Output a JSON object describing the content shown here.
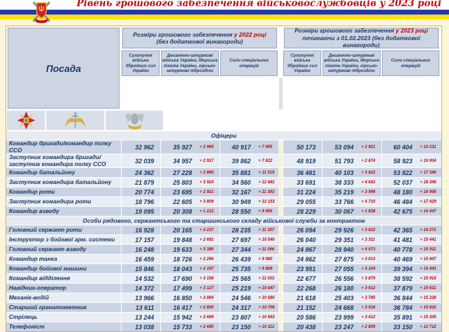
{
  "title": "Рівень грошового забезпечення військовослужбовців у 2023 році",
  "header_emblem": "ministry-of-defense-ukraine-emblem",
  "flag_stripes": {
    "blue": "#2038b0",
    "yellow": "#ffe10a"
  },
  "colors": {
    "title_red": "#bf0f0f",
    "navy_text": "#17365d",
    "delta_red": "#c00000",
    "row_dark": "#c9d3e3",
    "row_light": "#e9edf5",
    "header_bg": "#cdd5e3",
    "page_bg": "#fbf6d9"
  },
  "table": {
    "posada_header": "Посада",
    "groups": [
      {
        "line1_prefix": "Розміри грошового забезпечення ",
        "year": "у 2022 році",
        "line2": "(без додаткової винагороди)"
      },
      {
        "line1_prefix": "Розміри грошового забезпечення ",
        "year": "у 2023 році",
        "line2": "починаючи з 01.02.2023 (без додаткової винагороди)"
      }
    ],
    "subcolumns": [
      "Сухопутні війська Збройних сил України",
      "Десантно-штурмові війська України, Морська піхота України, гірсько-штурмові підрозділи",
      "Сили спеціальних операцій"
    ],
    "column_icons": [
      "ground-forces-emblem",
      "air-assault-forces-emblem",
      "special-operations-forces-emblem"
    ],
    "sections": [
      {
        "label": "Офіцери",
        "rows": [
          {
            "position": "Командир бригади/командир полку ССО",
            "values": [
              "32 962",
              "35 927",
              "+ 2 965",
              "40 917",
              "+ 7 955",
              "50 173",
              "53 094",
              "+ 2 921",
              "60 404",
              "+ 10 231"
            ]
          },
          {
            "position": "Заступник командира бригади/\nзаступник командира полку ССО",
            "values": [
              "32 039",
              "34 957",
              "+ 2 917",
              "39 862",
              "+ 7 822",
              "48 919",
              "51 793",
              "+ 2 874",
              "58 923",
              "+ 10 004"
            ]
          },
          {
            "position": "Командир батальйону",
            "values": [
              "24 362",
              "27 228",
              "+ 2 866",
              "35 881",
              "+ 11 519",
              "36 481",
              "40 103",
              "+ 3 622",
              "53 822",
              "+ 17 340"
            ]
          },
          {
            "position": "Заступник командира батальйону",
            "values": [
              "21 879",
              "25 803",
              "+ 3 924",
              "34 560",
              "+ 12 681",
              "33 691",
              "38 333",
              "+ 4 642",
              "52 037",
              "+ 18 346"
            ]
          },
          {
            "position": "Командир роти",
            "values": [
              "20 774",
              "23 695",
              "+ 2 921",
              "32 167",
              "+ 11 393",
              "31 224",
              "35 219",
              "+ 3 996",
              "48 180",
              "+ 16 956"
            ]
          },
          {
            "position": "Заступник командира роти",
            "values": [
              "18 796",
              "22 605",
              "+ 3 809",
              "30 949",
              "+ 12 153",
              "29 055",
              "33 766",
              "+ 4 710",
              "46 484",
              "+ 17 429"
            ]
          },
          {
            "position": "Командир взводу",
            "values": [
              "19 095",
              "20 308",
              "+ 1 212",
              "28 550",
              "+ 9 455",
              "28 229",
              "30 067",
              "+ 1 838",
              "42 675",
              "+ 14 447"
            ]
          }
        ]
      },
      {
        "label": "Особи рядового, сержантського та старшинського складу військової служби за контрактом",
        "rows": [
          {
            "position": "Головний сержант роти",
            "values": [
              "16 928",
              "20 165",
              "+ 3 237",
              "28 235",
              "+ 11 307",
              "26 094",
              "29 926",
              "+ 3 832",
              "42 365",
              "+ 16 271"
            ]
          },
          {
            "position": "Інструктор з бойової арм. системи",
            "values": [
              "17 157",
              "19 848",
              "+ 2 691",
              "27 697",
              "+ 10 540",
              "26 040",
              "29 351",
              "+ 3 311",
              "41 481",
              "+ 15 441"
            ]
          },
          {
            "position": "Головний сержант взводу",
            "values": [
              "16 248",
              "19 633",
              "+ 3 386",
              "27 344",
              "+ 11 096",
              "24 867",
              "28 940",
              "+ 4 073",
              "40 778",
              "+ 15 911"
            ]
          },
          {
            "position": "Командир танка",
            "values": [
              "16 459",
              "18 726",
              "+ 2 266",
              "26 439",
              "+ 9 980",
              "24 862",
              "27 875",
              "+ 3 013",
              "40 469",
              "+ 15 607"
            ]
          },
          {
            "position": "Командир бойової машини",
            "values": [
              "15 846",
              "18 043",
              "+ 2 197",
              "25 735",
              "+ 9 889",
              "23 951",
              "27 055",
              "+ 3 104",
              "39 394",
              "+ 15 443"
            ]
          },
          {
            "position": "Командир відділення",
            "values": [
              "14 532",
              "17 690",
              "+ 3 158",
              "25 565",
              "+ 11 033",
              "22 677",
              "26 556",
              "+ 3 879",
              "38 592",
              "+ 15 915"
            ]
          },
          {
            "position": "Навідник-оператор",
            "values": [
              "14 372",
              "17 499",
              "+ 3 127",
              "25 219",
              "+ 10 847",
              "22 268",
              "26 180",
              "+ 3 912",
              "37 879",
              "+ 15 611"
            ]
          },
          {
            "position": "Механік-водій",
            "values": [
              "13 966",
              "16 850",
              "+ 2 884",
              "24 546",
              "+ 10 580",
              "21 618",
              "25 403",
              "+ 3 785",
              "36 844",
              "+ 15 226"
            ]
          },
          {
            "position": "Старший гранатометник",
            "values": [
              "13 611",
              "16 417",
              "+ 2 805",
              "24 317",
              "+ 10 706",
              "21 152",
              "24 668",
              "+ 3 516",
              "36 784",
              "+ 15 632"
            ]
          },
          {
            "position": "Стрілець",
            "values": [
              "13 244",
              "15 942",
              "+ 2 699",
              "23 807",
              "+ 10 563",
              "20 586",
              "23 999",
              "+ 3 412",
              "35 891",
              "+ 15 305"
            ]
          },
          {
            "position": "Телефоніст",
            "partial": true,
            "values": [
              "13 038",
              "15 733",
              "+ 2 695",
              "23 150",
              "+ 10 112",
              "20 438",
              "23 247",
              "+ 2 809",
              "33 150",
              "+ 12 712"
            ]
          }
        ]
      }
    ]
  }
}
